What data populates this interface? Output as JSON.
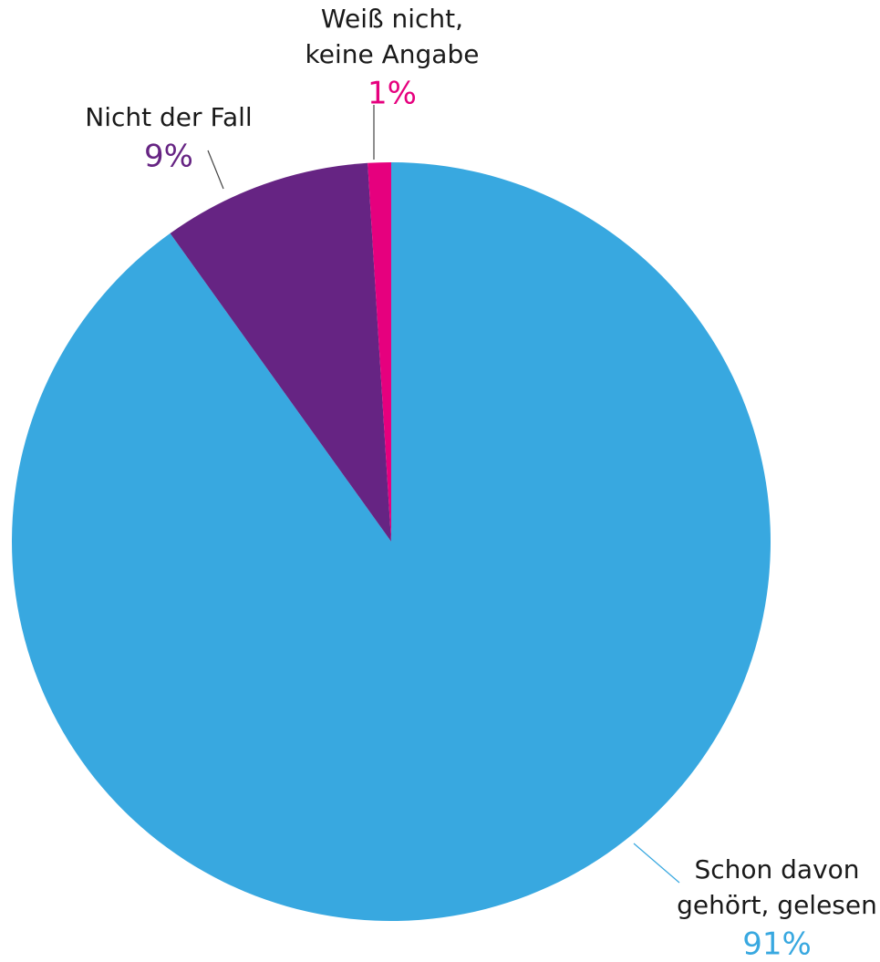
{
  "chart_data": {
    "type": "pie",
    "categories": [
      [
        "Schon davon",
        "gehört, gelesen"
      ],
      [
        "Nicht der Fall"
      ],
      [
        "Weiß nicht,",
        "keine Angabe"
      ]
    ],
    "values": [
      91,
      9,
      1
    ],
    "value_labels": [
      "91%",
      "9%",
      "1%"
    ],
    "colors": [
      "#38a8e0",
      "#662483",
      "#e6007e"
    ]
  }
}
